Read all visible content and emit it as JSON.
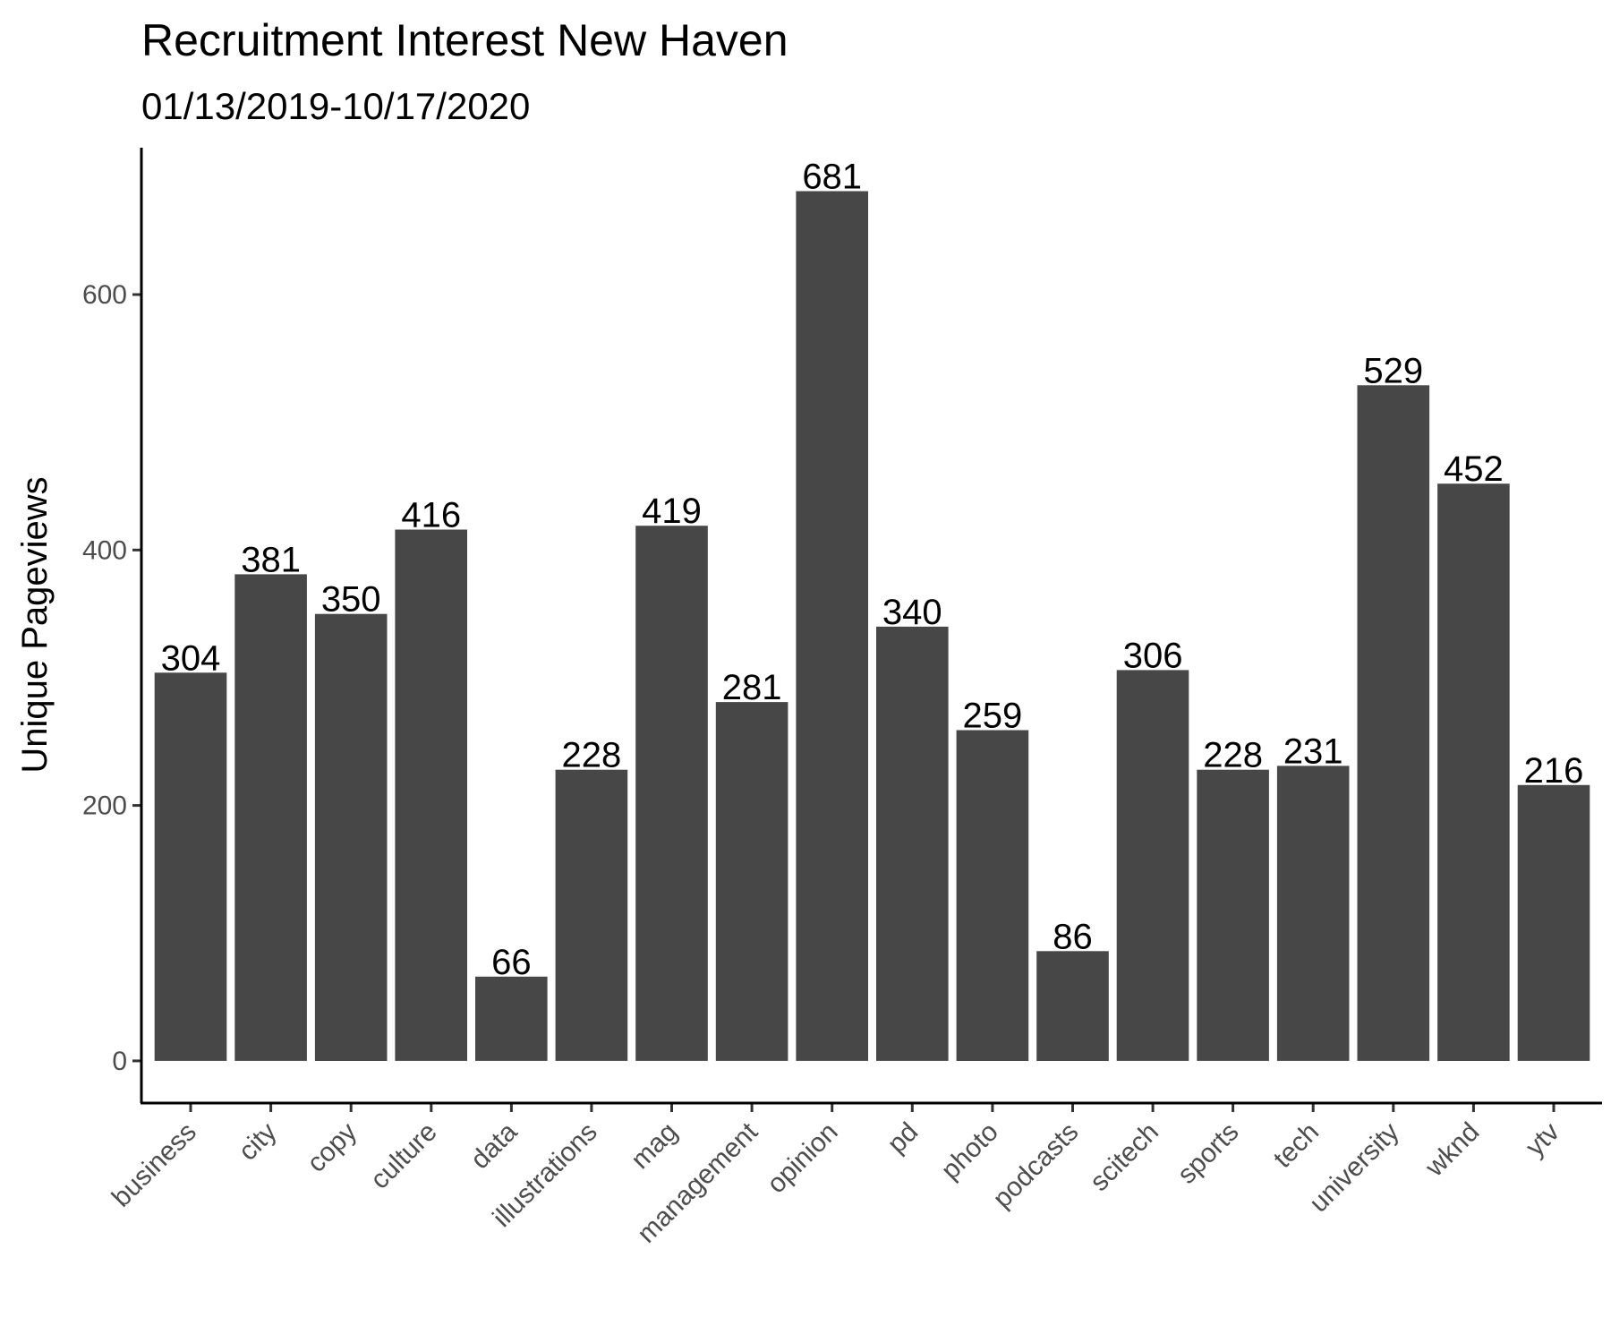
{
  "chart_data": {
    "type": "bar",
    "title": "Recruitment Interest New Haven",
    "subtitle": "01/13/2019-10/17/2020",
    "xlabel": "",
    "ylabel": "Unique Pageviews",
    "categories": [
      "business",
      "city",
      "copy",
      "culture",
      "data",
      "illustrations",
      "mag",
      "management",
      "opinion",
      "pd",
      "photo",
      "podcasts",
      "scitech",
      "sports",
      "tech",
      "university",
      "wknd",
      "ytv"
    ],
    "values": [
      304,
      381,
      350,
      416,
      66,
      228,
      419,
      281,
      681,
      340,
      259,
      86,
      306,
      228,
      231,
      529,
      452,
      216
    ],
    "y_ticks": [
      0,
      200,
      400,
      600
    ],
    "ylim": [
      -33,
      715
    ],
    "grid": false,
    "legend": "none",
    "bar_color": "#474747",
    "axis_color": "#000000"
  }
}
